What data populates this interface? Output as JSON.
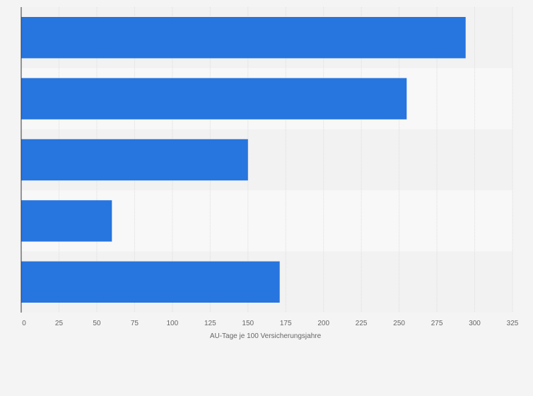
{
  "chart_data": {
    "type": "bar",
    "orientation": "horizontal",
    "categories": [
      "",
      "",
      "",
      "",
      ""
    ],
    "values": [
      294,
      255,
      150,
      60,
      171
    ],
    "xlabel": "AU-Tage je 100 Versicherungsjahre",
    "xlim": [
      0,
      325
    ],
    "ticks": [
      0,
      25,
      50,
      75,
      100,
      125,
      150,
      175,
      200,
      225,
      250,
      275,
      300,
      325
    ],
    "grid": "vertical",
    "legend": "none",
    "colors": {
      "bar": "#2775de",
      "band_dark": "#f2f2f2",
      "band_light": "#f8f8f8",
      "grid": "#dddddd",
      "axis": "#333333"
    }
  }
}
